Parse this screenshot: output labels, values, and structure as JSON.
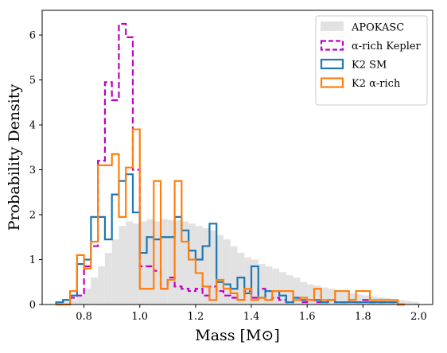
{
  "chart_data": {
    "type": "histogram",
    "xlabel": "Mass [M⊙]",
    "ylabel": "Probability Density",
    "xlim": [
      0.65,
      2.05
    ],
    "ylim": [
      0,
      6.55
    ],
    "xticks": [
      "0.8",
      "1.0",
      "1.2",
      "1.4",
      "1.6",
      "1.8",
      "2.0"
    ],
    "yticks": [
      "0",
      "1",
      "2",
      "3",
      "4",
      "5",
      "6"
    ],
    "legend_position": "upper right",
    "grid": false,
    "series": [
      {
        "name": "APOKASC",
        "style": "filled",
        "color": "#e2e2e2",
        "edges": [
          0.7,
          0.725,
          0.75,
          0.775,
          0.8,
          0.825,
          0.85,
          0.875,
          0.9,
          0.925,
          0.95,
          0.975,
          1.0,
          1.025,
          1.05,
          1.075,
          1.1,
          1.125,
          1.15,
          1.175,
          1.2,
          1.225,
          1.25,
          1.275,
          1.3,
          1.325,
          1.35,
          1.375,
          1.4,
          1.425,
          1.45,
          1.475,
          1.5,
          1.525,
          1.55,
          1.575,
          1.6,
          1.625,
          1.65,
          1.675,
          1.7,
          1.725,
          1.75,
          1.775,
          1.8,
          1.825,
          1.85,
          1.875,
          1.9,
          1.925,
          1.95,
          1.975,
          2.0
        ],
        "values": [
          0.03,
          0.05,
          0.1,
          0.2,
          0.35,
          0.6,
          0.85,
          1.15,
          1.45,
          1.75,
          1.85,
          1.8,
          1.85,
          1.9,
          1.85,
          1.9,
          1.88,
          1.88,
          1.85,
          1.8,
          1.75,
          1.7,
          1.65,
          1.55,
          1.45,
          1.3,
          1.15,
          1.05,
          1.0,
          0.9,
          0.85,
          0.8,
          0.72,
          0.65,
          0.6,
          0.5,
          0.45,
          0.42,
          0.38,
          0.35,
          0.3,
          0.28,
          0.25,
          0.22,
          0.2,
          0.18,
          0.16,
          0.14,
          0.12,
          0.1,
          0.08,
          0.06
        ]
      },
      {
        "name": "α-rich Kepler",
        "style": "step-dashed",
        "color": "#c000c0",
        "edges": [
          0.7,
          0.725,
          0.75,
          0.775,
          0.8,
          0.825,
          0.85,
          0.875,
          0.9,
          0.925,
          0.95,
          0.975,
          1.0,
          1.025,
          1.05,
          1.075,
          1.1,
          1.125,
          1.15,
          1.175,
          1.2,
          1.225,
          1.25,
          1.275,
          1.3,
          1.325,
          1.35,
          1.375,
          1.4,
          1.425,
          1.45,
          1.475,
          1.5,
          1.525,
          1.55,
          1.575,
          1.6,
          1.625,
          1.65,
          1.675,
          1.7,
          1.725,
          1.75,
          1.775,
          1.8,
          1.825,
          1.85,
          1.875,
          1.9,
          1.925,
          1.95
        ],
        "values": [
          0.0,
          0.1,
          0.15,
          0.2,
          0.85,
          1.3,
          3.2,
          4.95,
          4.55,
          6.25,
          5.95,
          3.0,
          0.85,
          0.85,
          0.75,
          0.35,
          0.6,
          0.4,
          0.35,
          0.3,
          0.35,
          0.2,
          0.4,
          0.3,
          0.2,
          0.15,
          0.1,
          0.3,
          0.15,
          0.35,
          0.1,
          0.15,
          0.1,
          0.05,
          0.15,
          0.05,
          0.1,
          0.05,
          0.05,
          0.1,
          0.05,
          0.05,
          0.1,
          0.05,
          0.1,
          0.05,
          0.05,
          0.05,
          0.05,
          0.0
        ]
      },
      {
        "name": "K2 SM",
        "style": "step",
        "color": "#1f77b4",
        "edges": [
          0.7,
          0.725,
          0.75,
          0.775,
          0.8,
          0.825,
          0.85,
          0.875,
          0.9,
          0.925,
          0.95,
          0.975,
          1.0,
          1.025,
          1.05,
          1.075,
          1.1,
          1.125,
          1.15,
          1.175,
          1.2,
          1.225,
          1.25,
          1.275,
          1.3,
          1.325,
          1.35,
          1.375,
          1.4,
          1.425,
          1.45,
          1.475,
          1.5,
          1.525,
          1.55,
          1.575,
          1.6,
          1.625,
          1.65,
          1.675,
          1.7,
          1.725,
          1.75,
          1.775,
          1.8,
          1.825,
          1.85,
          1.875,
          1.9,
          1.925,
          1.95
        ],
        "values": [
          0.05,
          0.1,
          0.2,
          0.9,
          1.0,
          1.95,
          1.95,
          1.45,
          2.45,
          2.75,
          2.9,
          2.05,
          1.15,
          1.5,
          1.45,
          1.5,
          1.5,
          1.95,
          1.65,
          1.2,
          1.0,
          1.3,
          1.8,
          0.5,
          0.45,
          0.35,
          0.6,
          0.25,
          0.85,
          0.15,
          0.3,
          0.3,
          0.2,
          0.05,
          0.15,
          0.1,
          0.1,
          0.1,
          0.05,
          0.1,
          0.05,
          0.05,
          0.05,
          0.05,
          0.05,
          0.05,
          0.05,
          0.05,
          0.05,
          0.0
        ]
      },
      {
        "name": "K2 α-rich",
        "style": "step",
        "color": "#ff7f0e",
        "edges": [
          0.7,
          0.725,
          0.75,
          0.775,
          0.8,
          0.825,
          0.85,
          0.875,
          0.9,
          0.925,
          0.95,
          0.975,
          1.0,
          1.025,
          1.05,
          1.075,
          1.1,
          1.125,
          1.15,
          1.175,
          1.2,
          1.225,
          1.25,
          1.275,
          1.3,
          1.325,
          1.35,
          1.375,
          1.4,
          1.425,
          1.45,
          1.475,
          1.5,
          1.525,
          1.55,
          1.575,
          1.6,
          1.625,
          1.65,
          1.675,
          1.7,
          1.725,
          1.75,
          1.775,
          1.8,
          1.825,
          1.85,
          1.875,
          1.9,
          1.925,
          1.95
        ],
        "values": [
          0.0,
          0.0,
          0.3,
          1.1,
          0.8,
          1.4,
          3.1,
          3.1,
          3.35,
          1.95,
          3.05,
          3.9,
          0.35,
          0.35,
          2.75,
          0.35,
          0.55,
          2.75,
          1.4,
          1.0,
          0.7,
          0.4,
          0.1,
          0.55,
          0.35,
          0.25,
          0.1,
          0.35,
          0.1,
          0.15,
          0.1,
          0.3,
          0.3,
          0.3,
          0.1,
          0.15,
          0.1,
          0.35,
          0.1,
          0.1,
          0.3,
          0.3,
          0.1,
          0.3,
          0.3,
          0.1,
          0.1,
          0.1,
          0.1,
          0.0
        ]
      }
    ]
  }
}
